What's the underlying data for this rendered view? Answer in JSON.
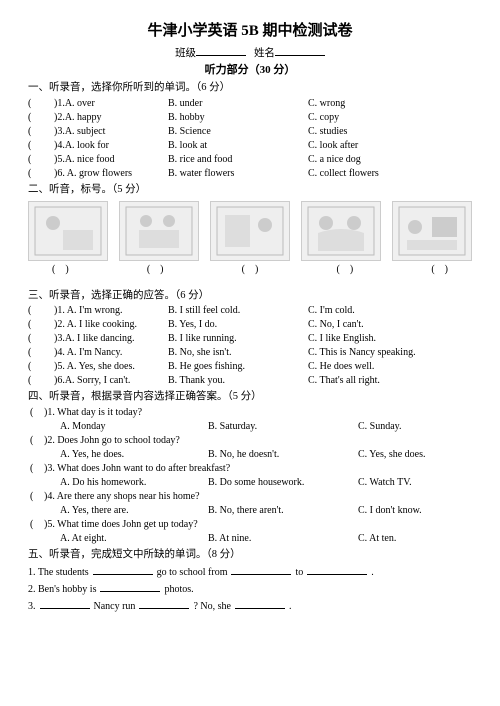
{
  "title": "牛津小学英语 5B 期中检测试卷",
  "class_label": "班级",
  "name_label": "姓名",
  "listening_label": "听力部分（30 分）",
  "sec1": {
    "title": "一、听录音，选择你所听到的单词。（6 分）",
    "rows": [
      {
        "n": ")1.A. over",
        "b": "B. under",
        "c": "C. wrong"
      },
      {
        "n": ")2.A. happy",
        "b": "B. hobby",
        "c": "C. copy"
      },
      {
        "n": ")3.A. subject",
        "b": "B. Science",
        "c": "C. studies"
      },
      {
        "n": ")4.A. look for",
        "b": "B. look at",
        "c": "C. look after"
      },
      {
        "n": ")5.A. nice food",
        "b": "B. rice and food",
        "c": "C. a nice dog"
      },
      {
        "n": ")6. A. grow flowers",
        "b": "B. water flowers",
        "c": "C. collect flowers"
      }
    ]
  },
  "sec2": {
    "title": "二、听音，标号。（5 分）"
  },
  "sec3": {
    "title": "三、听录音，选择正确的应答。（6 分）",
    "rows": [
      {
        "n": ")1. A. I'm wrong.",
        "b": "B. I still feel cold.",
        "c": "C. I'm cold."
      },
      {
        "n": ")2. A. I like cooking.",
        "b": "B. Yes, I do.",
        "c": "C. No, I can't."
      },
      {
        "n": ")3.A. I like dancing.",
        "b": "B. I like running.",
        "c": "C. I like English."
      },
      {
        "n": ")4. A. I'm Nancy.",
        "b": "B. No, she isn't.",
        "c": "C. This is Nancy speaking."
      },
      {
        "n": ")5. A. Yes, she does.",
        "b": "B. He goes fishing.",
        "c": "C. He does well."
      },
      {
        "n": ")6.A. Sorry, I can't.",
        "b": "B. Thank you.",
        "c": "C. That's all right."
      }
    ]
  },
  "sec4": {
    "title": "四、听录音，根据录音内容选择正确答案。（5 分）",
    "items": [
      {
        "q": ")1. What day is it today?",
        "a": "A.  Monday",
        "b": "B. Saturday.",
        "c": "C. Sunday."
      },
      {
        "q": ")2. Does John go to school today?",
        "a": "A.  Yes, he does.",
        "b": "B. No, he doesn't.",
        "c": "C. Yes, she does."
      },
      {
        "q": ")3. What does John want to do after breakfast?",
        "a": "A.  Do his homework.",
        "b": "B. Do some housework.",
        "c": "C. Watch TV."
      },
      {
        "q": ")4. Are there any shops near his home?",
        "a": "A.  Yes, there are.",
        "b": "B. No, there aren't.",
        "c": "C. I don't know."
      },
      {
        "q": ")5. What time does John get up today?",
        "a": "A.  At eight.",
        "b": "B. At nine.",
        "c": "C. At ten."
      }
    ]
  },
  "sec5": {
    "title": "五、听录音，完成短文中所缺的单词。（8 分）",
    "l1a": "1.  The students",
    "l1b": "go to school from",
    "l1c": "to",
    "l1d": ".",
    "l2a": "2.  Ben's hobby is",
    "l2b": "photos.",
    "l3a": "3.",
    "l3b": "Nancy run",
    "l3c": "? No, she",
    "l3d": "."
  },
  "paren": "(",
  "paren_close": ")"
}
